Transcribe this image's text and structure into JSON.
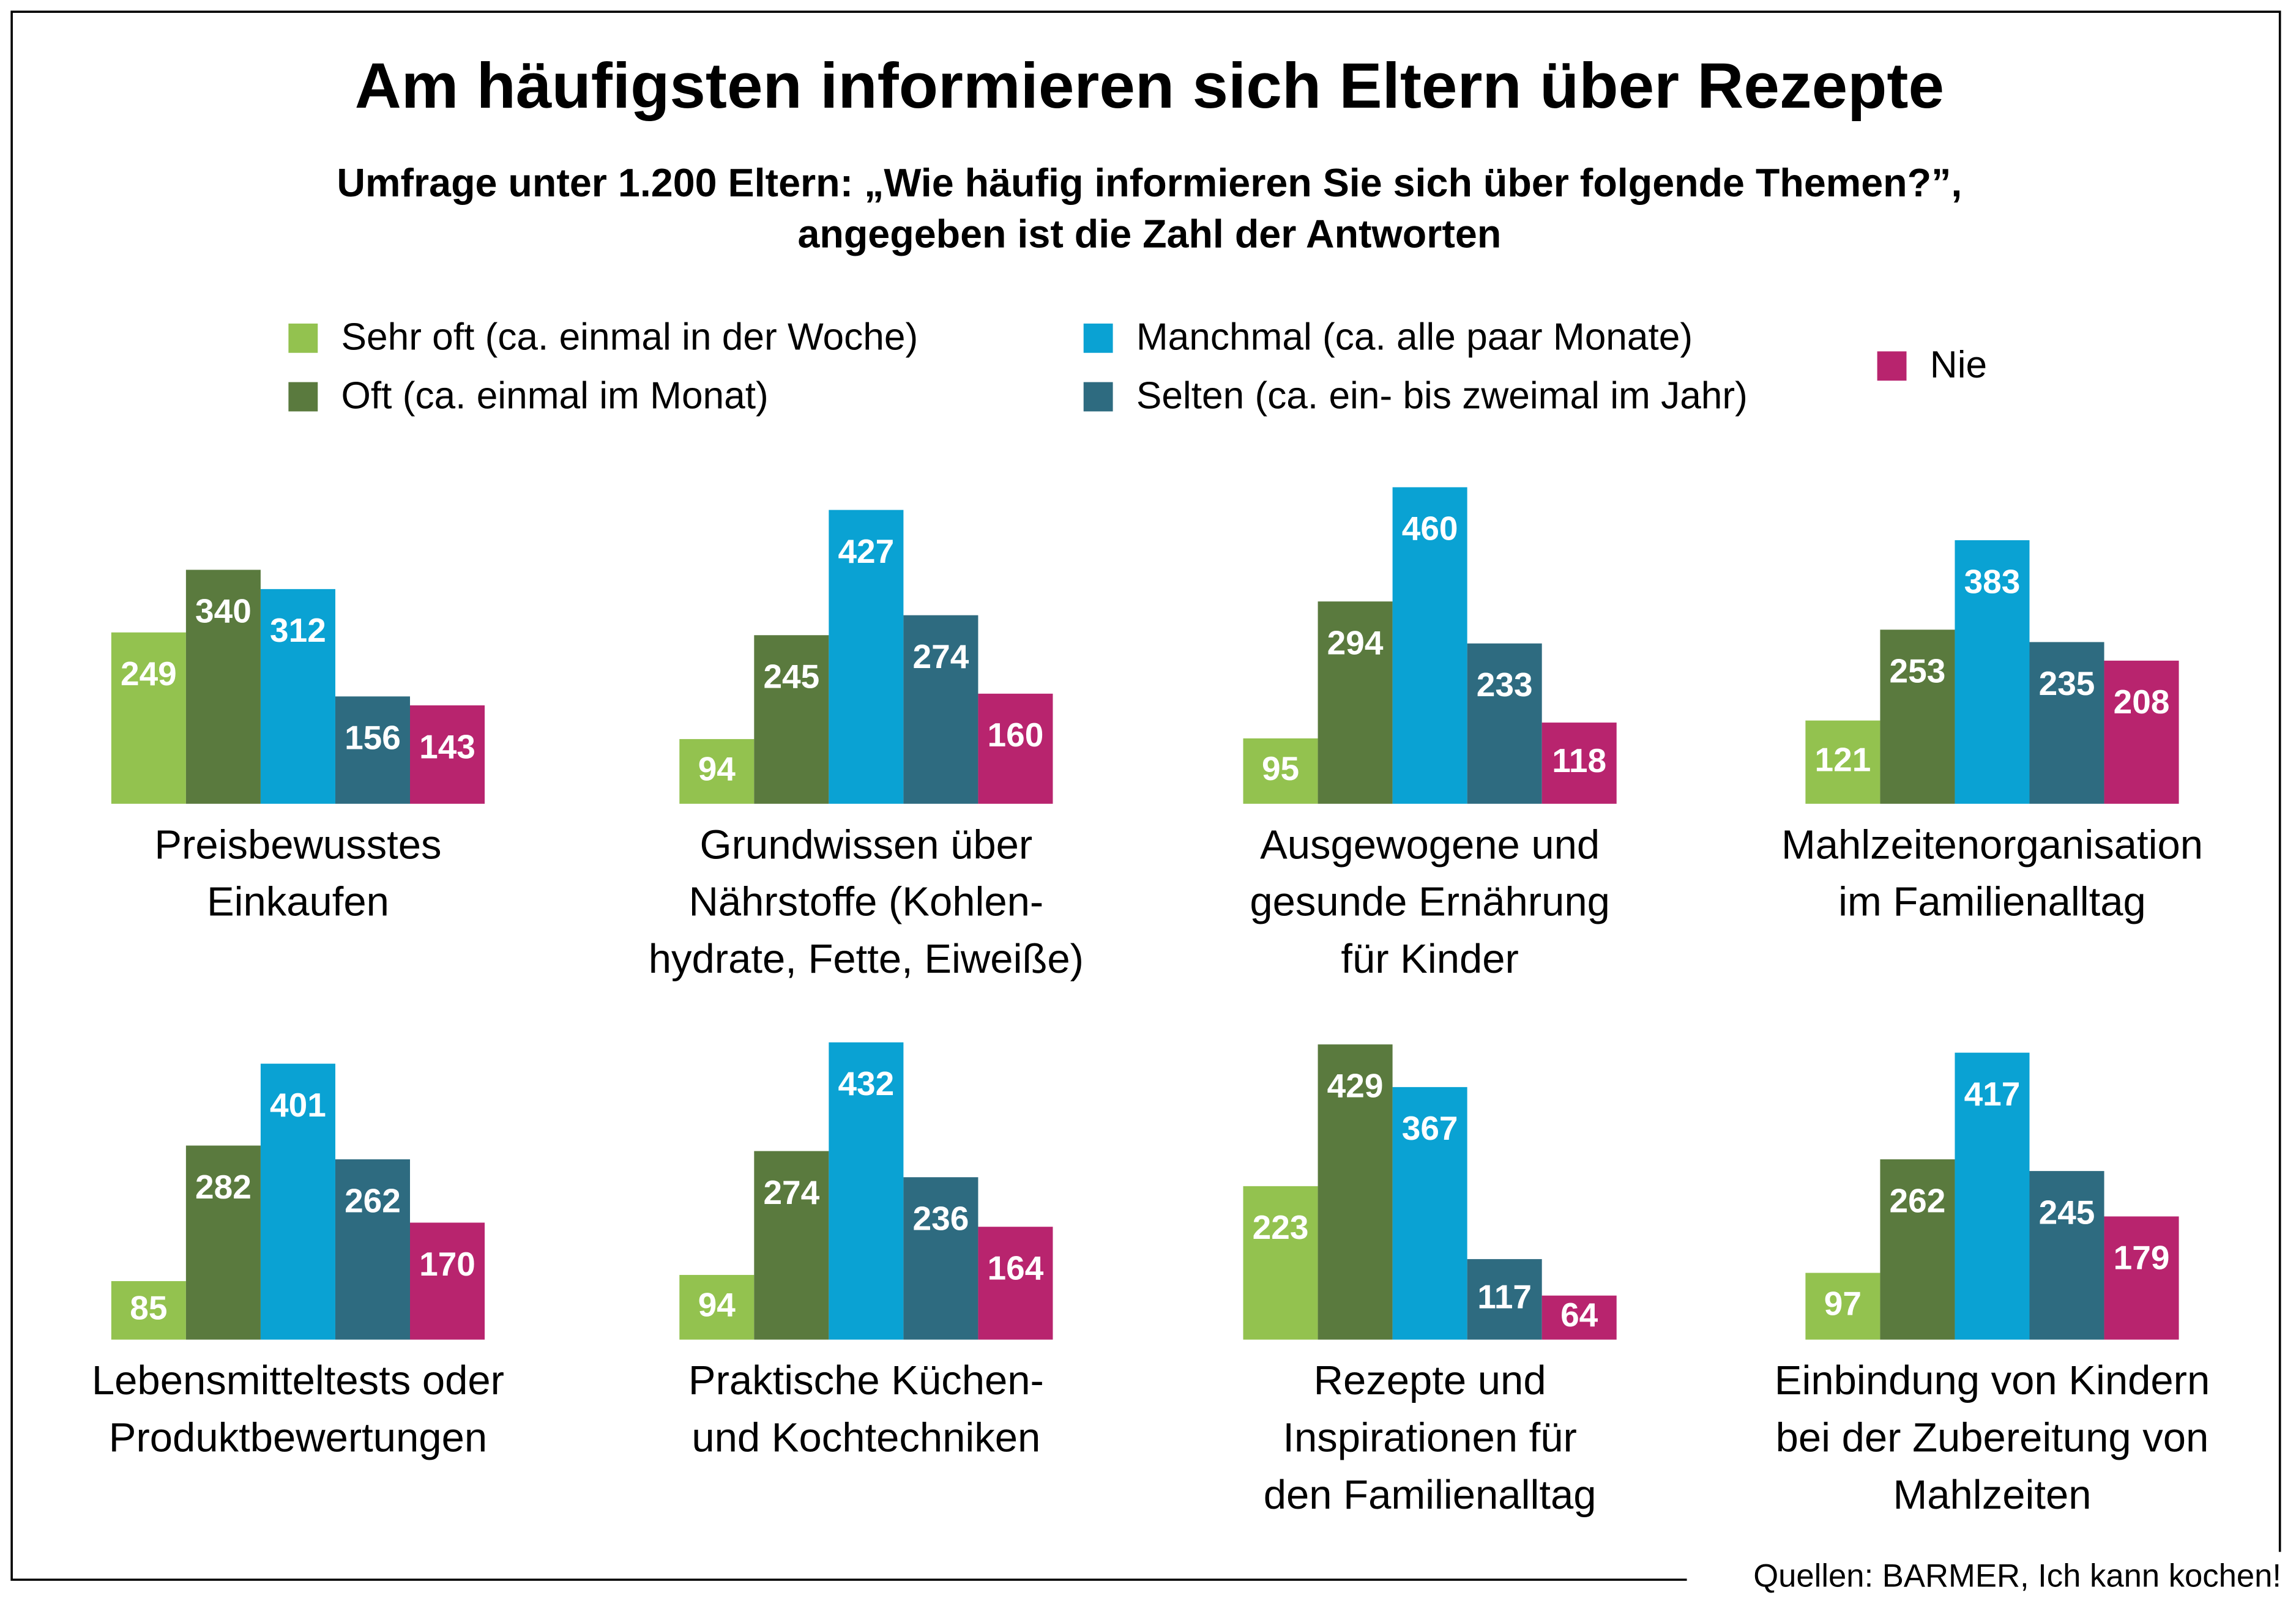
{
  "title": "Am häufigsten informieren sich Eltern über Rezepte",
  "subtitle": [
    "Umfrage unter 1.200 Eltern: „Wie häufig informieren Sie sich über folgende Themen?”,",
    "angegeben ist die Zahl der Antworten"
  ],
  "legend": {
    "series": [
      {
        "name": "Sehr oft (ca. einmal in der Woche)",
        "color": "#93c24f"
      },
      {
        "name": "Oft (ca. einmal im Monat)",
        "color": "#5a7a3e"
      },
      {
        "name": "Manchmal (ca. alle paar Monate)",
        "color": "#0aa2d3"
      },
      {
        "name": "Selten (ca. ein- bis zweimal im Jahr)",
        "color": "#2e6b80"
      },
      {
        "name": "Nie",
        "color": "#b8246e"
      }
    ]
  },
  "source": "Quellen: BARMER, Ich kann kochen!",
  "chart_data": [
    {
      "type": "bar",
      "title": [
        "Preisbewusstes",
        "Einkaufen"
      ],
      "values": [
        249,
        340,
        312,
        156,
        143
      ]
    },
    {
      "type": "bar",
      "title": [
        "Grundwissen über",
        "Nährstoffe (Kohlen-",
        "hydrate, Fette, Eiweiße)"
      ],
      "values": [
        94,
        245,
        427,
        274,
        160
      ]
    },
    {
      "type": "bar",
      "title": [
        "Ausgewogene und",
        "gesunde Ernährung",
        "für Kinder"
      ],
      "values": [
        95,
        294,
        460,
        233,
        118
      ]
    },
    {
      "type": "bar",
      "title": [
        "Mahlzeitenorganisation",
        "im Familienalltag"
      ],
      "values": [
        121,
        253,
        383,
        235,
        208
      ]
    },
    {
      "type": "bar",
      "title": [
        "Lebensmitteltests oder",
        "Produktbewertungen"
      ],
      "values": [
        85,
        282,
        401,
        262,
        170
      ]
    },
    {
      "type": "bar",
      "title": [
        "Praktische Küchen-",
        "und Kochtechniken"
      ],
      "values": [
        94,
        274,
        432,
        236,
        164
      ]
    },
    {
      "type": "bar",
      "title": [
        "Rezepte und",
        "Inspirationen für",
        "den Familienalltag"
      ],
      "values": [
        223,
        429,
        367,
        117,
        64
      ]
    },
    {
      "type": "bar",
      "title": [
        "Einbindung von Kindern",
        "bei der Zubereitung von",
        "Mahlzeiten"
      ],
      "values": [
        97,
        262,
        417,
        245,
        179
      ]
    }
  ]
}
